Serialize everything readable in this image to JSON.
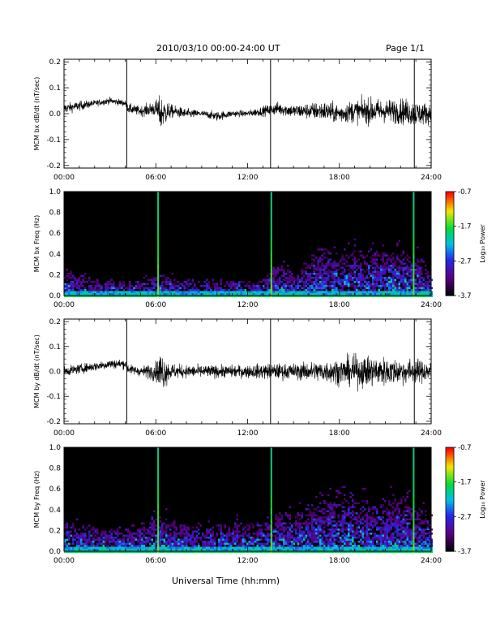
{
  "header": {
    "title": "2010/03/10  00:00-24:00 UT",
    "page": "Page 1/1"
  },
  "footer": {
    "xlabel": "Universal Time (hh:mm)"
  },
  "colorbar": {
    "label": "Log₁₀ Power",
    "ticks": [
      "-0.7",
      "-1.7",
      "-2.7",
      "-3.7"
    ],
    "tick_values": [
      -0.7,
      -1.7,
      -2.7,
      -3.7
    ],
    "range": [
      -3.7,
      -0.7
    ]
  },
  "chart_data": [
    {
      "type": "line",
      "title": "",
      "ylabel": "MCM bx dB/dt (nT/sec)",
      "xlabel": "",
      "x_ticks": [
        "00:00",
        "06:00",
        "12:00",
        "18:00",
        "24:00"
      ],
      "y_ticks": [
        "0.2",
        "0.1",
        "0.0",
        "-0.1",
        "-0.2"
      ],
      "xlim": [
        0,
        24
      ],
      "ylim": [
        -0.21,
        0.21
      ],
      "vertical_lines_hours": [
        4.1,
        13.5,
        22.9
      ],
      "series": [
        {
          "x": [
            0,
            1,
            2,
            3,
            4,
            4.2,
            5,
            6,
            6.3,
            7,
            8,
            9,
            10,
            11,
            12,
            13,
            14,
            15,
            16,
            17,
            18,
            19,
            20,
            21,
            22,
            23,
            24
          ],
          "y": [
            0.02,
            0.03,
            0.04,
            0.05,
            0.04,
            0.02,
            0.01,
            0.02,
            0.0,
            0.01,
            0.0,
            0.0,
            -0.01,
            0.0,
            0.0,
            0.01,
            0.02,
            0.01,
            0.01,
            0.01,
            0.0,
            0.01,
            0.01,
            0.01,
            0.01,
            0.0,
            0.0
          ],
          "envelope": [
            0.03,
            0.03,
            0.02,
            0.02,
            0.02,
            0.03,
            0.03,
            0.05,
            0.11,
            0.04,
            0.03,
            0.02,
            0.03,
            0.02,
            0.02,
            0.03,
            0.04,
            0.04,
            0.05,
            0.06,
            0.06,
            0.07,
            0.08,
            0.07,
            0.08,
            0.08,
            0.06
          ]
        }
      ]
    },
    {
      "type": "heatmap",
      "title": "",
      "ylabel": "MCM bx Freq (Hz)",
      "xlabel": "",
      "x_ticks": [
        "00:00",
        "06:00",
        "12:00",
        "18:00",
        "24:00"
      ],
      "y_ticks": [
        "1.0",
        "0.8",
        "0.6",
        "0.4",
        "0.2",
        "0.0"
      ],
      "xlim": [
        0,
        24
      ],
      "ylim": [
        0,
        1.0
      ],
      "activity_hours": [
        0,
        1,
        2,
        3,
        4,
        5,
        6,
        7,
        8,
        9,
        10,
        11,
        12,
        13,
        14,
        15,
        16,
        17,
        18,
        19,
        20,
        21,
        22,
        23,
        24
      ],
      "activity_max_freq": [
        0.35,
        0.25,
        0.2,
        0.2,
        0.2,
        0.2,
        0.3,
        0.25,
        0.2,
        0.2,
        0.2,
        0.2,
        0.2,
        0.25,
        0.45,
        0.3,
        0.5,
        0.6,
        0.55,
        0.6,
        0.55,
        0.6,
        0.55,
        0.5,
        0.35
      ],
      "spike_hours": [
        6.1,
        13.5,
        22.8
      ]
    },
    {
      "type": "line",
      "title": "",
      "ylabel": "MCM by dB/dt (nT/sec)",
      "xlabel": "",
      "x_ticks": [
        "00:00",
        "06:00",
        "12:00",
        "18:00",
        "24:00"
      ],
      "y_ticks": [
        "0.2",
        "0.1",
        "0.0",
        "-0.1",
        "-0.2"
      ],
      "xlim": [
        0,
        24
      ],
      "ylim": [
        -0.21,
        0.21
      ],
      "vertical_lines_hours": [
        4.1,
        13.5,
        22.9
      ],
      "series": [
        {
          "x": [
            0,
            1,
            2,
            3,
            4,
            4.2,
            5,
            6,
            6.3,
            7,
            8,
            9,
            10,
            11,
            12,
            13,
            14,
            15,
            16,
            17,
            18,
            19,
            20,
            21,
            22,
            23,
            24
          ],
          "y": [
            0.0,
            0.01,
            0.02,
            0.03,
            0.03,
            0.01,
            0.0,
            0.0,
            0.0,
            0.0,
            0.0,
            0.0,
            0.0,
            0.0,
            0.0,
            0.0,
            0.0,
            0.0,
            0.0,
            0.0,
            0.0,
            0.0,
            0.0,
            0.0,
            0.0,
            0.0,
            0.0
          ],
          "envelope": [
            0.03,
            0.03,
            0.03,
            0.03,
            0.03,
            0.03,
            0.03,
            0.06,
            0.13,
            0.05,
            0.04,
            0.04,
            0.04,
            0.04,
            0.04,
            0.05,
            0.05,
            0.05,
            0.06,
            0.07,
            0.08,
            0.1,
            0.1,
            0.09,
            0.08,
            0.08,
            0.06
          ]
        }
      ]
    },
    {
      "type": "heatmap",
      "title": "",
      "ylabel": "MCM by Freq (Hz)",
      "xlabel": "",
      "x_ticks": [
        "00:00",
        "06:00",
        "12:00",
        "18:00",
        "24:00"
      ],
      "y_ticks": [
        "1.0",
        "0.8",
        "0.6",
        "0.4",
        "0.2",
        "0.0"
      ],
      "xlim": [
        0,
        24
      ],
      "ylim": [
        0,
        1.0
      ],
      "activity_hours": [
        0,
        1,
        2,
        3,
        4,
        5,
        6,
        7,
        8,
        9,
        10,
        11,
        12,
        13,
        14,
        15,
        16,
        17,
        18,
        19,
        20,
        21,
        22,
        23,
        24
      ],
      "activity_max_freq": [
        0.4,
        0.35,
        0.3,
        0.3,
        0.3,
        0.35,
        0.5,
        0.4,
        0.35,
        0.3,
        0.35,
        0.4,
        0.35,
        0.4,
        0.5,
        0.5,
        0.55,
        0.65,
        0.7,
        0.7,
        0.6,
        0.65,
        0.7,
        0.6,
        0.4
      ],
      "spike_hours": [
        6.1,
        13.5,
        22.8
      ]
    }
  ]
}
